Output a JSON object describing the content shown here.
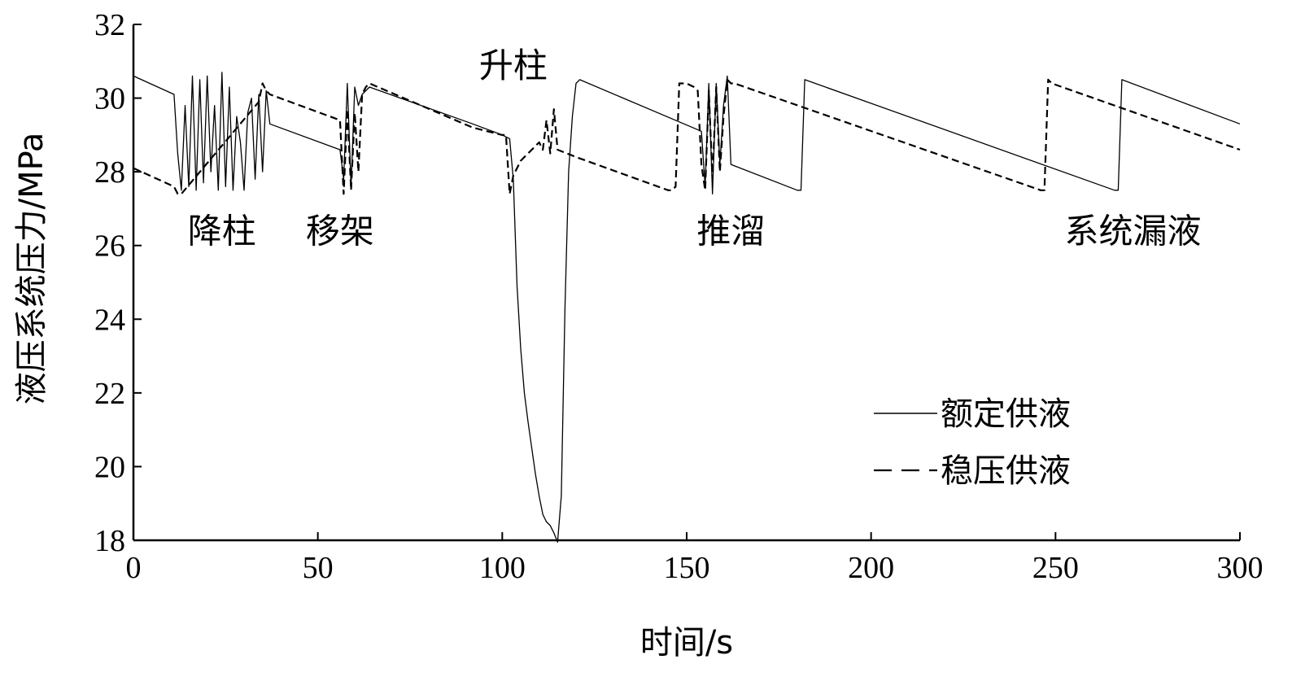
{
  "chart_data": {
    "type": "line",
    "title": "",
    "xlabel": "时间/s",
    "ylabel": "液压系统压力/MPa",
    "xlim": [
      0,
      300
    ],
    "ylim": [
      18,
      32
    ],
    "xticks": [
      0,
      50,
      100,
      150,
      200,
      250,
      300
    ],
    "yticks": [
      18,
      20,
      22,
      24,
      26,
      28,
      30,
      32
    ],
    "grid": false,
    "legend_position": "bottom-right",
    "annotations": [
      {
        "text": "降柱",
        "x": 24,
        "y": 26.4
      },
      {
        "text": "移架",
        "x": 56,
        "y": 26.4
      },
      {
        "text": "升柱",
        "x": 103,
        "y": 30.9
      },
      {
        "text": "推溜",
        "x": 162,
        "y": 26.4
      },
      {
        "text": "系统漏液",
        "x": 271,
        "y": 26.4
      }
    ],
    "series": [
      {
        "name": "额定供液",
        "style": "solid",
        "x": [
          0,
          11,
          12,
          13,
          14,
          15,
          16,
          17,
          18,
          19,
          20,
          21,
          22,
          23,
          24,
          25,
          26,
          27,
          28,
          29,
          30,
          31,
          32,
          33,
          34,
          35,
          36,
          37,
          56,
          57,
          58,
          59,
          60,
          61,
          62,
          63,
          64,
          92,
          100,
          102,
          103,
          104,
          105,
          106,
          107,
          108,
          109,
          110,
          111,
          112,
          113,
          114,
          115,
          116,
          117,
          118,
          119,
          120,
          121,
          154,
          155,
          156,
          157,
          158,
          159,
          160,
          161,
          162,
          180,
          181,
          182,
          266,
          267,
          268,
          300
        ],
        "y": [
          30.6,
          30.1,
          28.5,
          27.5,
          29.8,
          27.6,
          30.6,
          27.5,
          30.5,
          27.7,
          30.6,
          28.0,
          29.8,
          27.5,
          30.7,
          27.6,
          30.3,
          27.5,
          29.5,
          28.8,
          27.5,
          29.6,
          30.0,
          27.8,
          30.1,
          28.0,
          30.2,
          29.3,
          28.6,
          27.8,
          30.4,
          27.6,
          30.3,
          29.8,
          30.1,
          30.2,
          30.3,
          29.3,
          29.0,
          28.9,
          27.8,
          24.9,
          23.2,
          22.0,
          21.2,
          20.5,
          19.8,
          19.2,
          18.7,
          18.5,
          18.4,
          18.2,
          17.95,
          19.2,
          24.3,
          28.0,
          29.5,
          30.4,
          30.5,
          29.1,
          27.6,
          30.4,
          27.4,
          30.4,
          28.2,
          29.8,
          30.6,
          28.2,
          27.5,
          27.5,
          30.5,
          27.5,
          27.5,
          30.5,
          29.3
        ]
      },
      {
        "name": "稳压供液",
        "style": "dashed",
        "x": [
          0,
          11,
          12,
          13,
          34,
          35,
          36,
          37,
          56,
          57,
          58,
          59,
          60,
          61,
          62,
          63,
          64,
          92,
          100,
          101,
          102,
          103,
          104,
          105,
          106,
          107,
          108,
          109,
          110,
          111,
          112,
          113,
          114,
          115,
          120,
          145,
          146,
          147,
          148,
          150,
          152,
          153,
          154,
          155,
          156,
          157,
          158,
          159,
          160,
          161,
          162,
          163,
          246,
          247,
          248,
          249,
          300
        ],
        "y": [
          28.1,
          27.6,
          27.4,
          27.4,
          29.9,
          30.4,
          30.2,
          30.1,
          29.4,
          27.4,
          29.7,
          27.5,
          29.6,
          28.0,
          30.1,
          30.3,
          30.4,
          29.2,
          29.0,
          29.0,
          27.4,
          27.9,
          28.1,
          28.3,
          28.4,
          28.5,
          28.6,
          28.7,
          28.8,
          28.6,
          29.4,
          28.5,
          29.7,
          28.6,
          28.4,
          27.5,
          27.5,
          27.6,
          30.4,
          30.4,
          30.3,
          30.2,
          28.2,
          27.5,
          30.2,
          27.8,
          30.3,
          28.0,
          29.5,
          30.5,
          30.4,
          30.4,
          27.5,
          27.5,
          30.5,
          30.4,
          28.6
        ]
      }
    ]
  }
}
